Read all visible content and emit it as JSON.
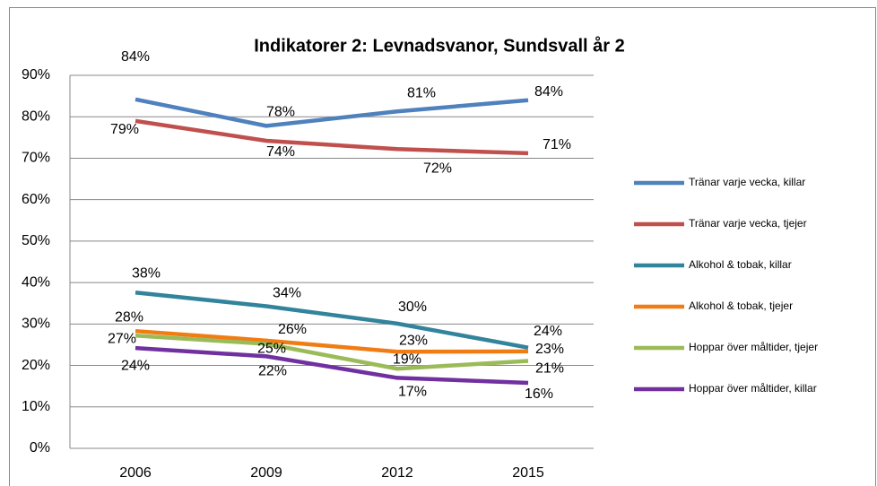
{
  "chart_data": {
    "type": "line",
    "title": "Indikatorer 2: Levnadsvanor, Sundsvall år 2",
    "categories": [
      "2006",
      "2009",
      "2012",
      "2015"
    ],
    "series": [
      {
        "name": "Tränar varje vecka, killar",
        "color": "#4f81bd",
        "values": [
          84.2,
          77.8,
          81.3,
          84.0
        ],
        "value_labels": [
          "84%",
          "78%",
          "81%",
          "84%"
        ]
      },
      {
        "name": "Tränar varje vecka, tjejer",
        "color": "#c0504d",
        "values": [
          79.0,
          74.2,
          72.2,
          71.2
        ],
        "value_labels": [
          "79%",
          "74%",
          "72%",
          "71%"
        ]
      },
      {
        "name": "Alkohol & tobak, killar",
        "color": "#31849b",
        "values": [
          37.6,
          34.3,
          30.1,
          24.3
        ],
        "value_labels": [
          "38%",
          "34%",
          "30%",
          "24%"
        ]
      },
      {
        "name": "Alkohol & tobak, tjejer",
        "color": "#f07c14",
        "values": [
          28.3,
          26.0,
          23.3,
          23.4
        ],
        "value_labels": [
          "28%",
          "26%",
          "23%",
          "23%"
        ]
      },
      {
        "name": "Hoppar över måltider, tjejer",
        "color": "#9bbb59",
        "values": [
          27.2,
          25.2,
          19.2,
          21.1
        ],
        "value_labels": [
          "27%",
          "25%",
          "19%",
          "21%"
        ]
      },
      {
        "name": "Hoppar över måltider, killar",
        "color": "#7030a0",
        "values": [
          24.2,
          22.2,
          17.0,
          15.8
        ],
        "value_labels": [
          "24%",
          "22%",
          "17%",
          "16%"
        ]
      }
    ],
    "ylim": [
      0,
      90
    ],
    "yticks": [
      {
        "value": 0,
        "label": "0%"
      },
      {
        "value": 10,
        "label": "10%"
      },
      {
        "value": 20,
        "label": "20%"
      },
      {
        "value": 30,
        "label": "30%"
      },
      {
        "value": 40,
        "label": "40%"
      },
      {
        "value": 50,
        "label": "50%"
      },
      {
        "value": 60,
        "label": "60%"
      },
      {
        "value": 70,
        "label": "70%"
      },
      {
        "value": 80,
        "label": "80%"
      },
      {
        "value": 90,
        "label": "90%"
      }
    ],
    "grid": true,
    "legend": "right"
  }
}
